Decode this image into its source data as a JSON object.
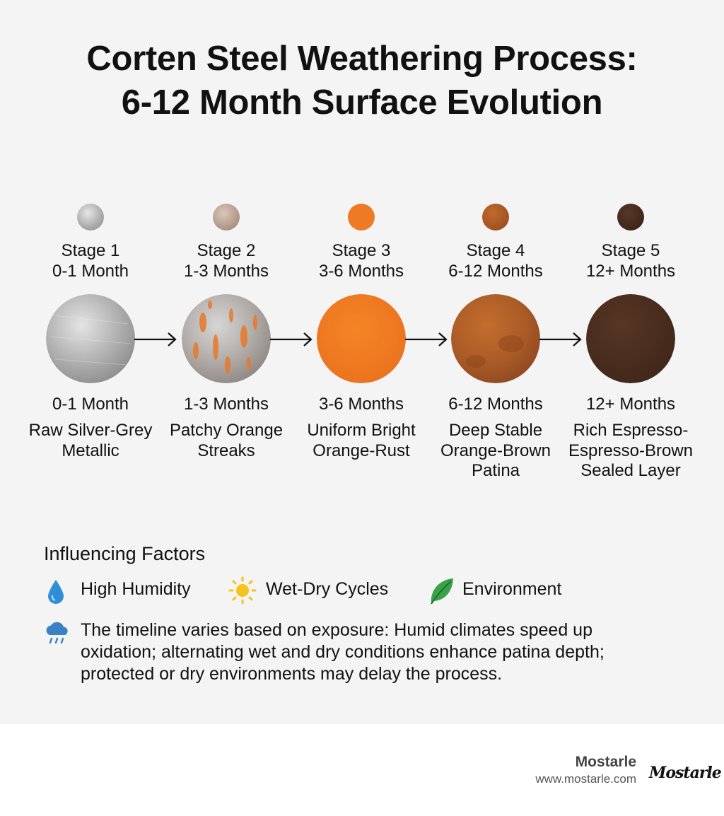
{
  "title": {
    "line1": "Corten Steel Weathering Process:",
    "line2": "6-12 Month Surface Evolution"
  },
  "stages": [
    {
      "stage": "Stage 1",
      "period": "0-1 Month",
      "duration": "0-1 Month",
      "desc_line1": "Raw Silver-Grey",
      "desc_line2": "Metallic",
      "desc_line3": "",
      "color": "#b5b5b5"
    },
    {
      "stage": "Stage 2",
      "period": "1-3 Months",
      "duration": "1-3 Months",
      "desc_line1": "Patchy Orange",
      "desc_line2": "Streaks",
      "desc_line3": "",
      "color": "#c7a28c"
    },
    {
      "stage": "Stage 3",
      "period": "3-6 Months",
      "duration": "3-6 Months",
      "desc_line1": "Uniform Bright",
      "desc_line2": "Orange-Rust",
      "desc_line3": "",
      "color": "#ef7a24"
    },
    {
      "stage": "Stage 4",
      "period": "6-12 Months",
      "duration": "6-12 Months",
      "desc_line1": "Deep Stable",
      "desc_line2": "Orange-Brown",
      "desc_line3": "Patina",
      "color": "#b3612a"
    },
    {
      "stage": "Stage 5",
      "period": "12+ Months",
      "duration": "12+ Months",
      "desc_line1": "Rich Espresso-",
      "desc_line2": "Espresso-Brown",
      "desc_line3": "Sealed Layer",
      "color": "#4a2d1e"
    }
  ],
  "factors": {
    "heading": "Influencing Factors",
    "items": [
      {
        "label": "High Humidity",
        "icon": "water-drop-icon"
      },
      {
        "label": "Wet-Dry Cycles",
        "icon": "sun-icon"
      },
      {
        "label": "Environment",
        "icon": "leaf-icon"
      }
    ],
    "note_icon": "rain-cloud-icon",
    "note_line1": "The timeline varies based on exposure: Humid climates speed up",
    "note_line2": "oxidation; alternating wet and dry conditions enhance patina depth;",
    "note_line3": "protected or dry environments may delay the process."
  },
  "brand": {
    "name": "Mostarle",
    "url": "www.mostarle.com",
    "signature": "Mostarle"
  },
  "colors": {
    "background": "#f4f4f4",
    "text": "#111111",
    "orange_accent": "#ef7a24"
  }
}
